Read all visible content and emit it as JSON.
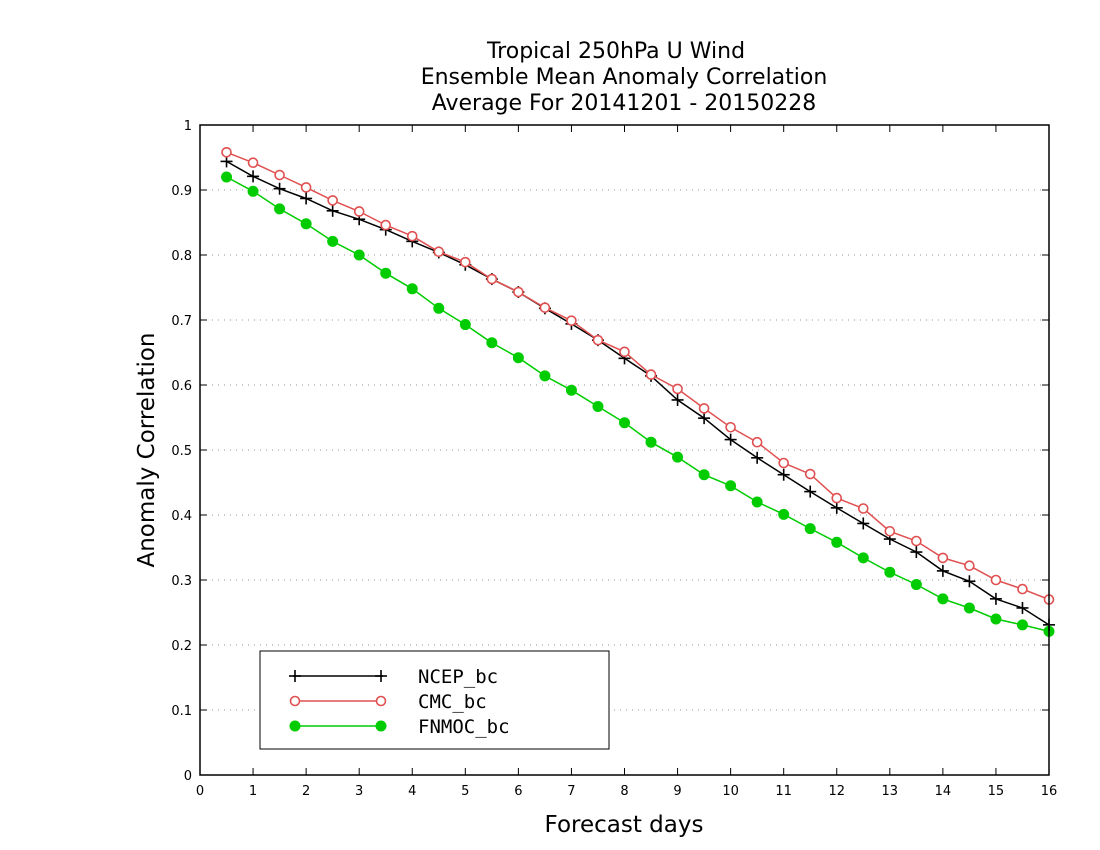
{
  "chart_data": {
    "type": "line",
    "title": [
      "Tropical 250hPa U Wind",
      "Ensemble Mean Anomaly Correlation",
      "Average For 20141201 - 20150228"
    ],
    "xlabel": "Forecast days",
    "ylabel": "Anomaly Correlation",
    "xlim": [
      0,
      16
    ],
    "ylim": [
      0,
      1
    ],
    "xticks": [
      "0",
      "1",
      "2",
      "3",
      "4",
      "5",
      "6",
      "7",
      "8",
      "9",
      "10",
      "11",
      "12",
      "13",
      "14",
      "15",
      "16"
    ],
    "yticks": [
      "0",
      "0.1",
      "0.2",
      "0.3",
      "0.4",
      "0.5",
      "0.6",
      "0.7",
      "0.8",
      "0.9",
      "1"
    ],
    "grid": "dotted horizontal",
    "legend_position": "bottom-left",
    "x": [
      0.5,
      1,
      1.5,
      2,
      2.5,
      3,
      3.5,
      4,
      4.5,
      5,
      5.5,
      6,
      6.5,
      7,
      7.5,
      8,
      8.5,
      9,
      9.5,
      10,
      10.5,
      11,
      11.5,
      12,
      12.5,
      13,
      13.5,
      14,
      14.5,
      15,
      15.5,
      16
    ],
    "series": [
      {
        "name": "NCEP_bc",
        "color": "#000000",
        "marker": "plus",
        "values": [
          0.944,
          0.921,
          0.902,
          0.887,
          0.868,
          0.855,
          0.839,
          0.821,
          0.804,
          0.785,
          0.763,
          0.743,
          0.718,
          0.694,
          0.669,
          0.641,
          0.614,
          0.577,
          0.549,
          0.516,
          0.488,
          0.462,
          0.436,
          0.411,
          0.387,
          0.363,
          0.343,
          0.314,
          0.298,
          0.271,
          0.257,
          0.231
        ]
      },
      {
        "name": "CMC_bc",
        "color": "#e05050",
        "marker": "open-circle",
        "values": [
          0.958,
          0.942,
          0.923,
          0.904,
          0.884,
          0.867,
          0.846,
          0.829,
          0.805,
          0.789,
          0.763,
          0.743,
          0.719,
          0.699,
          0.669,
          0.651,
          0.616,
          0.594,
          0.564,
          0.535,
          0.512,
          0.48,
          0.463,
          0.426,
          0.41,
          0.375,
          0.36,
          0.334,
          0.322,
          0.3,
          0.286,
          0.27
        ]
      },
      {
        "name": "FNMOC_bc",
        "color": "#00cc00",
        "marker": "filled-circle",
        "values": [
          0.92,
          0.898,
          0.871,
          0.848,
          0.821,
          0.8,
          0.772,
          0.748,
          0.718,
          0.693,
          0.665,
          0.642,
          0.614,
          0.592,
          0.567,
          0.542,
          0.512,
          0.489,
          0.462,
          0.445,
          0.42,
          0.401,
          0.379,
          0.358,
          0.334,
          0.312,
          0.293,
          0.271,
          0.257,
          0.24,
          0.231,
          0.221
        ]
      }
    ]
  }
}
